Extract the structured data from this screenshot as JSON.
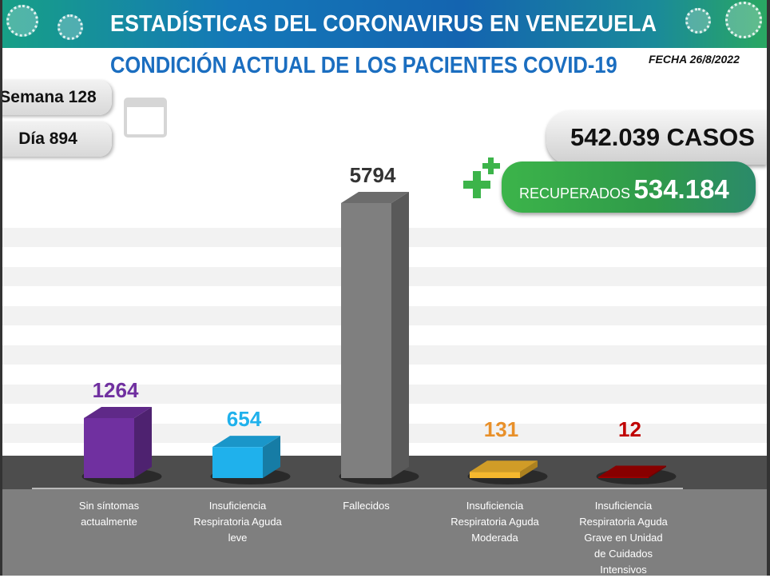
{
  "header": {
    "title": "ESTADÍSTICAS DEL CORONAVIRUS EN VENEZUELA",
    "subtitle": "CONDICIÓN ACTUAL DE LOS PACIENTES COVID-19",
    "fecha": "FECHA 26/8/2022"
  },
  "info": {
    "semana": "Semana 128",
    "dia": "Día 894",
    "casos": "542.039 CASOS",
    "recuperados_label": "RECUPERADOS",
    "recuperados_value": "534.184"
  },
  "icons": [
    "virus-icon",
    "calendar-icon",
    "plus-icon"
  ],
  "chart_data": {
    "type": "bar",
    "categories": [
      "Sin síntomas actualmente",
      "Insuficiencia Respiratoria Aguda leve",
      "Fallecidos",
      "Insuficiencia Respiratoria Aguda Moderada",
      "Insuficiencia Respiratoria Aguda Grave en Unidad de Cuidados Intensivos"
    ],
    "values": [
      1264,
      654,
      5794,
      131,
      12
    ],
    "data_labels": [
      "1264",
      "654",
      "5794",
      "131",
      "12"
    ],
    "colors": [
      "#7030a0",
      "#1fb1ec",
      "#7f7f7f",
      "#f5b82e",
      "#a00000"
    ],
    "label_colors": [
      "#7030a0",
      "#1fb1ec",
      "#333333",
      "#e8902a",
      "#c00000"
    ],
    "grid": true
  }
}
